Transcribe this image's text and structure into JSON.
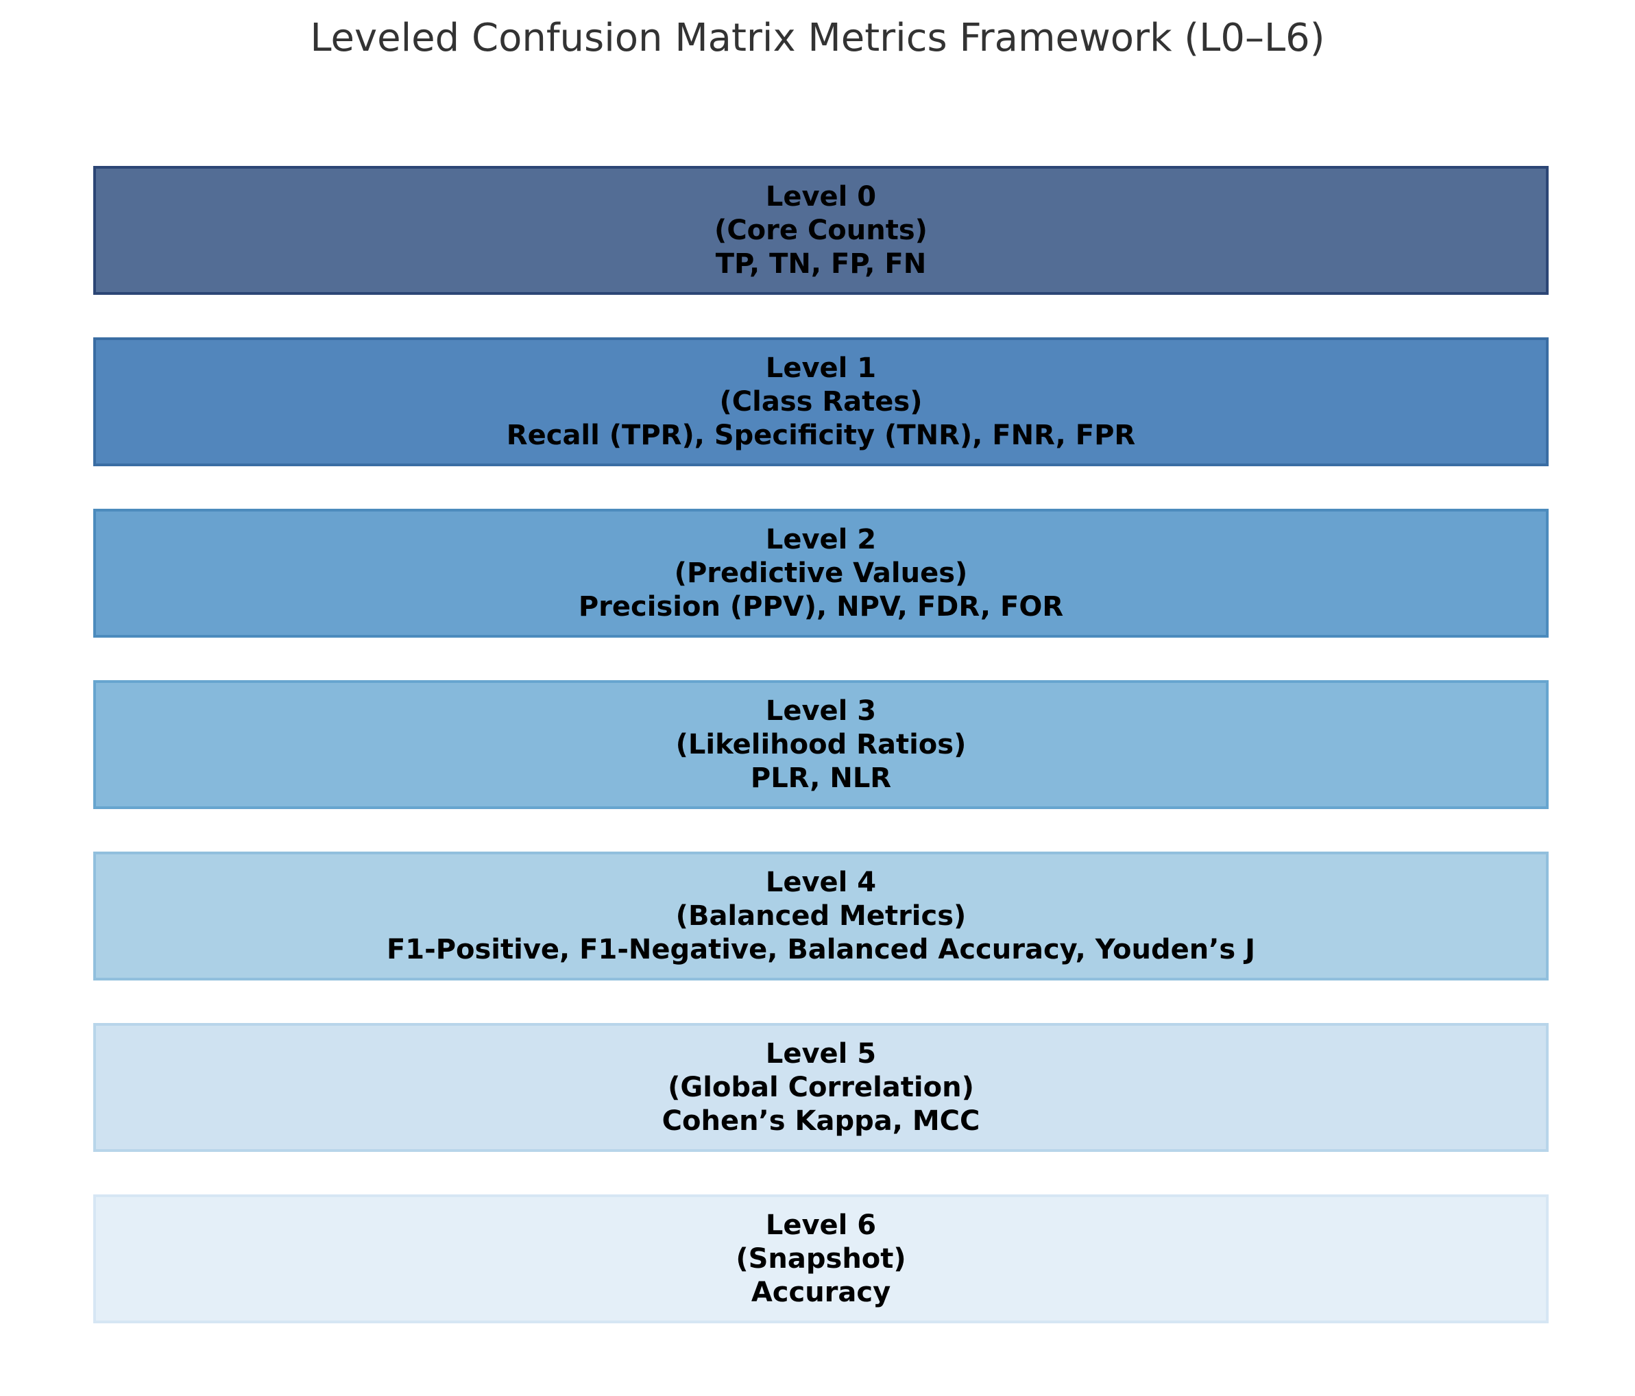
{
  "title": "Leveled Confusion Matrix Metrics Framework (L0–L6)",
  "levels": [
    {
      "label": "Level 0",
      "category": "(Core Counts)",
      "metrics": "TP, TN, FP, FN",
      "fill_color": "#536d95",
      "border_color": "#2c4675"
    },
    {
      "label": "Level 1",
      "category": "(Class Rates)",
      "metrics": "Recall (TPR), Specificity (TNR), FNR, FPR",
      "fill_color": "#5286bc",
      "border_color": "#3a6da3"
    },
    {
      "label": "Level 2",
      "category": "(Predictive Values)",
      "metrics": "Precision (PPV), NPV, FDR, FOR",
      "fill_color": "#69a2cf",
      "border_color": "#4c8bbd"
    },
    {
      "label": "Level 3",
      "category": "(Likelihood Ratios)",
      "metrics": "PLR, NLR",
      "fill_color": "#86b9db",
      "border_color": "#67a5cf"
    },
    {
      "label": "Level 4",
      "category": "(Balanced Metrics)",
      "metrics": "F1-Positive, F1-Negative, Balanced Accuracy, Youden’s J",
      "fill_color": "#acd0e6",
      "border_color": "#91bfdd"
    },
    {
      "label": "Level 5",
      "category": "(Global Correlation)",
      "metrics": "Cohen’s Kappa, MCC",
      "fill_color": "#cfe2f1",
      "border_color": "#b8d5ea"
    },
    {
      "label": "Level 6",
      "category": "(Snapshot)",
      "metrics": "Accuracy",
      "fill_color": "#e4eff8",
      "border_color": "#d6e6f4"
    }
  ]
}
